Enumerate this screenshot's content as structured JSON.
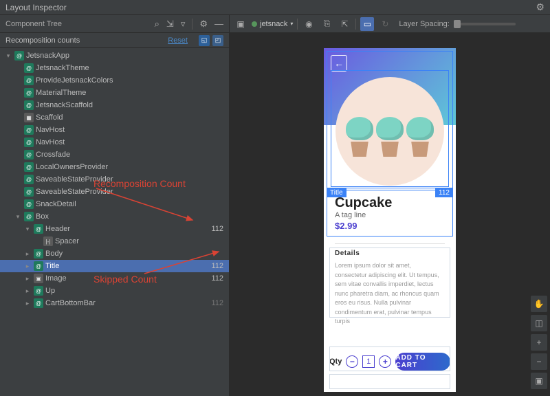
{
  "window": {
    "title": "Layout Inspector"
  },
  "left_panel": {
    "header": "Component Tree",
    "toolbar_icons": [
      "search",
      "collapse",
      "filter",
      "divider",
      "settings",
      "minimize"
    ],
    "recomp_header": "Recomposition counts",
    "reset_link": "Reset",
    "tree": [
      {
        "indent": 0,
        "chev": "v",
        "icon": "compose",
        "name": "JetsnackApp"
      },
      {
        "indent": 1,
        "chev": "",
        "icon": "compose",
        "name": "JetsnackTheme"
      },
      {
        "indent": 1,
        "chev": "",
        "icon": "compose",
        "name": "ProvideJetsnackColors"
      },
      {
        "indent": 1,
        "chev": "",
        "icon": "compose",
        "name": "MaterialTheme"
      },
      {
        "indent": 1,
        "chev": "",
        "icon": "compose",
        "name": "JetsnackScaffold"
      },
      {
        "indent": 1,
        "chev": "",
        "icon": "layout",
        "name": "Scaffold"
      },
      {
        "indent": 1,
        "chev": "",
        "icon": "compose",
        "name": "NavHost"
      },
      {
        "indent": 1,
        "chev": "",
        "icon": "compose",
        "name": "NavHost"
      },
      {
        "indent": 1,
        "chev": "",
        "icon": "compose",
        "name": "Crossfade"
      },
      {
        "indent": 1,
        "chev": "",
        "icon": "compose",
        "name": "LocalOwnersProvider"
      },
      {
        "indent": 1,
        "chev": "",
        "icon": "compose",
        "name": "SaveableStateProvider"
      },
      {
        "indent": 1,
        "chev": "",
        "icon": "compose",
        "name": "SaveableStateProvider"
      },
      {
        "indent": 1,
        "chev": "",
        "icon": "compose",
        "name": "SnackDetail"
      },
      {
        "indent": 1,
        "chev": "v",
        "icon": "compose",
        "name": "Box"
      },
      {
        "indent": 2,
        "chev": "v",
        "icon": "compose",
        "name": "Header",
        "count": "112"
      },
      {
        "indent": 3,
        "chev": "",
        "icon": "spacer",
        "name": "Spacer"
      },
      {
        "indent": 2,
        "chev": ">",
        "icon": "compose",
        "name": "Body"
      },
      {
        "indent": 2,
        "chev": ">",
        "icon": "compose",
        "name": "Title",
        "count": "112",
        "selected": true
      },
      {
        "indent": 2,
        "chev": ">",
        "icon": "image",
        "name": "Image",
        "count": "112"
      },
      {
        "indent": 2,
        "chev": ">",
        "icon": "compose",
        "name": "Up"
      },
      {
        "indent": 2,
        "chev": ">",
        "icon": "compose",
        "name": "CartBottomBar",
        "skip": "112"
      }
    ]
  },
  "right_panel": {
    "process": "jetsnack",
    "layer_spacing_label": "Layer Spacing:"
  },
  "phone": {
    "title": "Cupcake",
    "tagline": "A tag line",
    "price": "$2.99",
    "details_header": "Details",
    "details_body": "Lorem ipsum dolor sit amet, consectetur adipiscing elit. Ut tempus, sem vitae convallis imperdiet, lectus nunc pharetra diam, ac rhoncus quam eros eu risus. Nulla pulvinar condimentum erat, pulvinar tempus turpis",
    "qty_label": "Qty",
    "qty_value": "1",
    "add_label": "ADD TO CART",
    "title_badge": "Title",
    "count_badge": "112"
  },
  "annotations": {
    "recomp": "Recomposition Count",
    "skipped": "Skipped Count"
  },
  "colors": {
    "selection": "#4b6eaf",
    "outline": "#3b82f6",
    "anno": "#d94334"
  }
}
